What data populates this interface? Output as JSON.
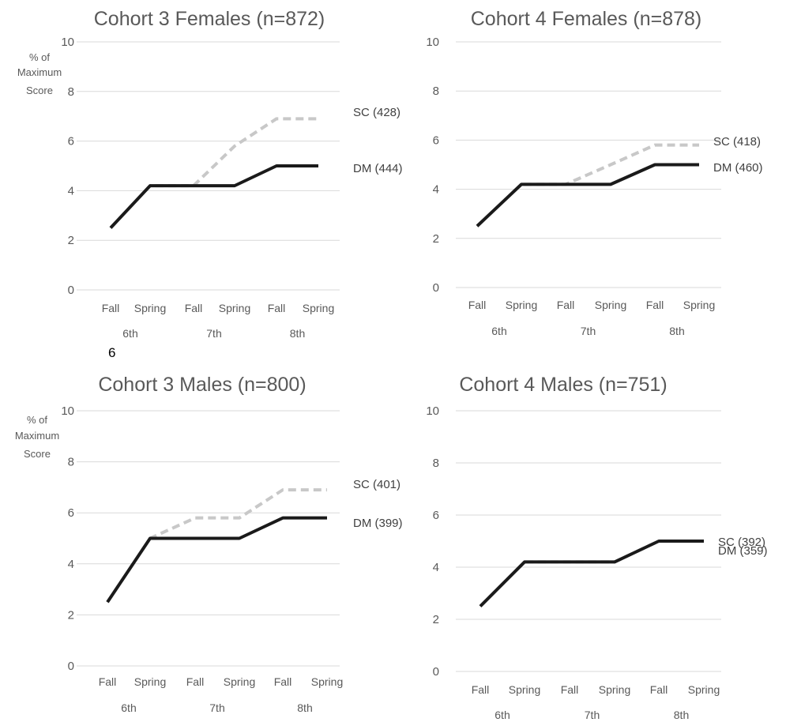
{
  "stray_text": "6",
  "colors": {
    "dm": "#1a1a1a",
    "sc": "#c8c8c8",
    "grid": "#d9d9d9",
    "title": "#595959",
    "label": "#595959"
  },
  "chart_data": [
    {
      "type": "line",
      "title": "Cohort 3 Females (n=872)",
      "ylabel": "% of Maximum Score",
      "ylim": [
        0,
        10
      ],
      "yticks": [
        0,
        2,
        4,
        6,
        8,
        10
      ],
      "grid": true,
      "categories": [
        "Fall",
        "Spring",
        "Fall",
        "Spring",
        "Fall",
        "Spring"
      ],
      "groups": [
        "6th",
        "7th",
        "8th"
      ],
      "series": [
        {
          "name": "SC (428)",
          "style": "dashed",
          "values": [
            2.5,
            4.2,
            4.2,
            5.8,
            6.9,
            6.9
          ]
        },
        {
          "name": "DM (444)",
          "style": "solid",
          "values": [
            2.5,
            4.2,
            4.2,
            4.2,
            5.0,
            5.0
          ]
        }
      ]
    },
    {
      "type": "line",
      "title": "Cohort 4 Females (n=878)",
      "ylabel": "",
      "ylim": [
        0,
        10
      ],
      "yticks": [
        0,
        2,
        4,
        6,
        8,
        10
      ],
      "grid": true,
      "categories": [
        "Fall",
        "Spring",
        "Fall",
        "Spring",
        "Fall",
        "Spring"
      ],
      "groups": [
        "6th",
        "7th",
        "8th"
      ],
      "series": [
        {
          "name": "SC (418)",
          "style": "dashed",
          "values": [
            2.5,
            4.2,
            4.2,
            5.0,
            5.8,
            5.8
          ]
        },
        {
          "name": "DM (460)",
          "style": "solid",
          "values": [
            2.5,
            4.2,
            4.2,
            4.2,
            5.0,
            5.0
          ]
        }
      ]
    },
    {
      "type": "line",
      "title": "Cohort 3 Males (n=800)",
      "ylabel": "% of Maximum Score",
      "ylim": [
        0,
        10
      ],
      "yticks": [
        0,
        2,
        4,
        6,
        8,
        10
      ],
      "grid": true,
      "categories": [
        "Fall",
        "Spring",
        "Fall",
        "Spring",
        "Fall",
        "Spring"
      ],
      "groups": [
        "6th",
        "7th",
        "8th"
      ],
      "series": [
        {
          "name": "SC (401)",
          "style": "dashed",
          "values": [
            2.5,
            5.0,
            5.8,
            5.8,
            6.9,
            6.9
          ]
        },
        {
          "name": "DM (399)",
          "style": "solid",
          "values": [
            2.5,
            5.0,
            5.0,
            5.0,
            5.8,
            5.8
          ]
        }
      ]
    },
    {
      "type": "line",
      "title": "Cohort 4 Males (n=751)",
      "ylabel": "",
      "ylim": [
        0,
        10
      ],
      "yticks": [
        0,
        2,
        4,
        6,
        8,
        10
      ],
      "grid": true,
      "categories": [
        "Fall",
        "Spring",
        "Fall",
        "Spring",
        "Fall",
        "Spring"
      ],
      "groups": [
        "6th",
        "7th",
        "8th"
      ],
      "series": [
        {
          "name": "SC (392)",
          "style": "dashed",
          "values": [
            2.5,
            4.2,
            4.2,
            4.2,
            5.0,
            5.0
          ]
        },
        {
          "name": "DM (359)",
          "style": "solid",
          "values": [
            2.5,
            4.2,
            4.2,
            4.2,
            5.0,
            5.0
          ]
        }
      ]
    }
  ]
}
